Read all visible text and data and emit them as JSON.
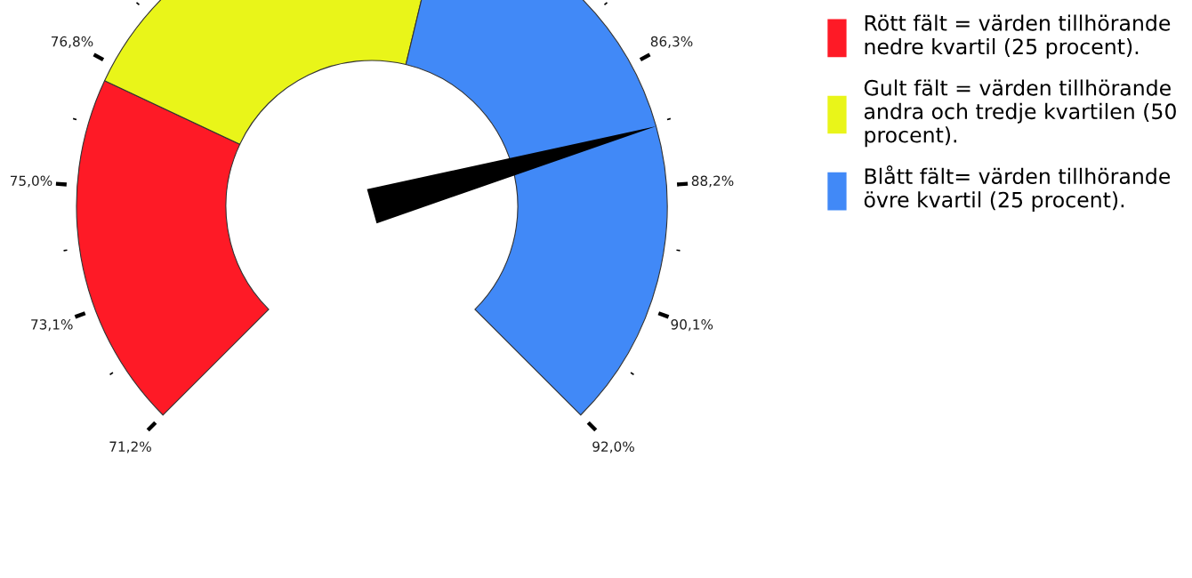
{
  "chart_data": {
    "type": "donut",
    "categories": [
      "Rött fält = värden tillhörande\nnedre kvartil (25 procent).",
      "Gult fält = värden tillhörande\nandra och tredje kvartilen (50\nprocent).",
      "Blått fält= värden tillhörande\növre kvartil (25 procent)."
    ],
    "values": [
      26,
      29,
      45
    ],
    "colors": [
      "#fe1a26",
      "#e9f519",
      "#4189f7"
    ],
    "needle": "Blått fält= värden tillhörande\növre kvartil (25 procent).",
    "annotations": [
      "71,2%",
      "73,1%",
      "75,0%",
      "76,8%",
      "86,3%",
      "88,2%",
      "90,1%",
      "92,0%"
    ],
    "legend": "top right"
  }
}
